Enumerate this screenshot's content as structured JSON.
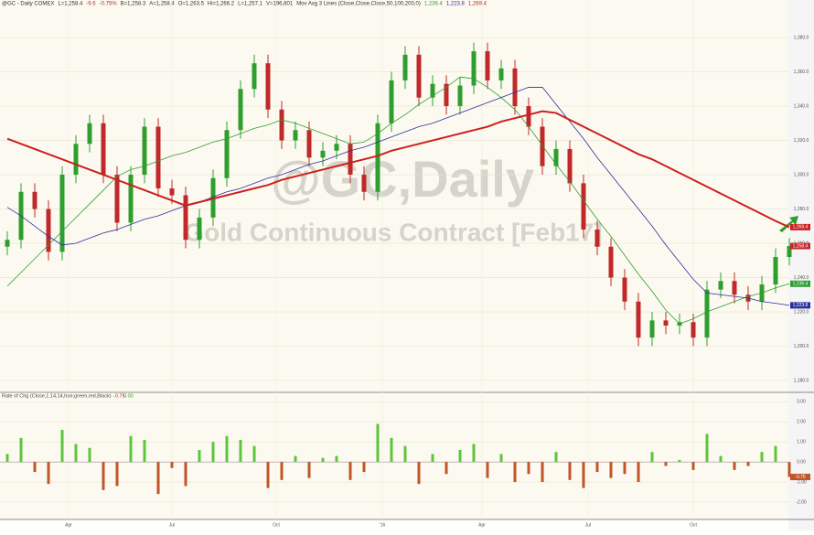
{
  "chart_data": {
    "type": "candlestick",
    "header": {
      "symbol": "@GC - Daily COMEX",
      "last": "L=1,258.4",
      "change": "-9.6",
      "change_pct": "-0.75%",
      "bid": "B=1,258.3",
      "ask": "A=1,258.4",
      "open": "O=1,263.5",
      "high": "Hi=1,266.2",
      "low": "L=1,257.1",
      "volume": "V=196,801",
      "study": "Mov Avg 3 Lines (Close,Close,Close,50,100,200,0)"
    },
    "watermark": "@GC,Daily",
    "subtitle": "Gold Continuous Contract [Feb17]",
    "x_labels": [
      "Apr",
      "Jul",
      "Oct",
      "'16",
      "Apr",
      "Jul",
      "Oct"
    ],
    "ylim": [
      1173.6,
      1401.9
    ],
    "yticks": [
      {
        "value": 1180,
        "label": "1,180.0"
      },
      {
        "value": 1200,
        "label": "1,200.0"
      },
      {
        "value": 1220,
        "label": "1,220.0"
      },
      {
        "value": 1240,
        "label": "1,240.0"
      },
      {
        "value": 1260,
        "label": "1,260.0"
      },
      {
        "value": 1280,
        "label": "1,280.0"
      },
      {
        "value": 1300,
        "label": "1,300.0"
      },
      {
        "value": 1320,
        "label": "1,320.0"
      },
      {
        "value": 1340,
        "label": "1,340.0"
      },
      {
        "value": 1360,
        "label": "1,360.0"
      },
      {
        "value": 1380,
        "label": "1,380.0"
      }
    ],
    "up_color": "#2e9e2e",
    "down_color": "#c0282a",
    "candles": {
      "open": [
        1258,
        1262,
        1290,
        1280,
        1255,
        1300,
        1318,
        1330,
        1300,
        1272,
        1300,
        1328,
        1292,
        1288,
        1262,
        1275,
        1298,
        1326,
        1350,
        1365,
        1338,
        1320,
        1326,
        1310,
        1314,
        1318,
        1300,
        1290,
        1330,
        1355,
        1370,
        1345,
        1353,
        1340,
        1352,
        1372,
        1355,
        1362,
        1340,
        1328,
        1305,
        1315,
        1295,
        1268,
        1258,
        1240,
        1226,
        1205,
        1215,
        1212,
        1214,
        1205,
        1233,
        1238,
        1230,
        1226,
        1236,
        1252
      ],
      "high": [
        1267,
        1295,
        1295,
        1285,
        1305,
        1323,
        1335,
        1335,
        1305,
        1305,
        1333,
        1333,
        1297,
        1293,
        1280,
        1303,
        1331,
        1355,
        1370,
        1370,
        1343,
        1331,
        1331,
        1319,
        1323,
        1323,
        1305,
        1335,
        1360,
        1375,
        1375,
        1358,
        1358,
        1357,
        1377,
        1377,
        1367,
        1367,
        1345,
        1333,
        1320,
        1320,
        1300,
        1273,
        1263,
        1245,
        1231,
        1220,
        1220,
        1219,
        1219,
        1238,
        1243,
        1243,
        1235,
        1241,
        1257,
        1263
      ],
      "low": [
        1253,
        1257,
        1275,
        1250,
        1250,
        1295,
        1313,
        1295,
        1267,
        1267,
        1295,
        1287,
        1283,
        1257,
        1257,
        1270,
        1293,
        1321,
        1345,
        1333,
        1315,
        1315,
        1305,
        1305,
        1309,
        1295,
        1285,
        1285,
        1325,
        1350,
        1340,
        1340,
        1335,
        1335,
        1347,
        1350,
        1350,
        1335,
        1323,
        1300,
        1300,
        1290,
        1263,
        1253,
        1235,
        1221,
        1200,
        1200,
        1207,
        1207,
        1200,
        1200,
        1228,
        1225,
        1221,
        1221,
        1231,
        1247
      ],
      "close": [
        1262,
        1290,
        1280,
        1255,
        1300,
        1318,
        1330,
        1300,
        1272,
        1300,
        1328,
        1292,
        1288,
        1262,
        1275,
        1298,
        1326,
        1350,
        1365,
        1338,
        1320,
        1326,
        1310,
        1314,
        1318,
        1300,
        1290,
        1330,
        1355,
        1370,
        1345,
        1353,
        1340,
        1352,
        1372,
        1355,
        1362,
        1340,
        1328,
        1305,
        1315,
        1295,
        1268,
        1258,
        1240,
        1226,
        1205,
        1215,
        1212,
        1214,
        1205,
        1233,
        1238,
        1230,
        1226,
        1236,
        1252,
        1258.4
      ],
      "last_label": "1,258.4"
    },
    "series": [
      {
        "color": "#2e9e2e",
        "last_label": "1,236.4",
        "values": [
          1235,
          1243,
          1251,
          1259,
          1267,
          1275,
          1283,
          1291,
          1299,
          1303,
          1305,
          1308,
          1311,
          1313,
          1316,
          1319,
          1321,
          1324,
          1327,
          1329,
          1332,
          1330,
          1327,
          1324,
          1321,
          1318,
          1319,
          1324,
          1330,
          1335,
          1341,
          1346,
          1351,
          1357,
          1356,
          1351,
          1345,
          1338,
          1328,
          1317,
          1306,
          1296,
          1285,
          1274,
          1264,
          1253,
          1242,
          1232,
          1221,
          1213,
          1216,
          1220,
          1223,
          1226,
          1229,
          1231,
          1234,
          1236.4
        ]
      },
      {
        "color": "#2b2f9e",
        "last_label": "1,223.8",
        "values": [
          1281,
          1276,
          1270,
          1264,
          1259,
          1260,
          1263,
          1266,
          1268,
          1271,
          1274,
          1276,
          1279,
          1282,
          1284,
          1287,
          1290,
          1292,
          1295,
          1298,
          1300,
          1303,
          1306,
          1308,
          1311,
          1314,
          1316,
          1319,
          1322,
          1325,
          1328,
          1330,
          1333,
          1336,
          1339,
          1342,
          1345,
          1348,
          1351,
          1351,
          1341,
          1331,
          1321,
          1310,
          1300,
          1290,
          1280,
          1270,
          1259,
          1249,
          1239,
          1231,
          1230,
          1229,
          1228,
          1226,
          1225,
          1223.8
        ]
      },
      {
        "color": "#cc1f1f",
        "last_label": "1,269.4",
        "values": [
          1321,
          1318,
          1315,
          1312,
          1309,
          1306,
          1303,
          1300,
          1297,
          1294,
          1291,
          1288,
          1285,
          1282,
          1284,
          1286,
          1288,
          1290,
          1292,
          1294,
          1297,
          1299,
          1301,
          1303,
          1305,
          1307,
          1309,
          1311,
          1314,
          1316,
          1318,
          1320,
          1322,
          1324,
          1326,
          1328,
          1331,
          1333,
          1335,
          1337,
          1336,
          1332,
          1328,
          1324,
          1320,
          1316,
          1312,
          1309,
          1305,
          1301,
          1297,
          1293,
          1289,
          1285,
          1281,
          1277,
          1273,
          1269.4
        ]
      }
    ],
    "roc": {
      "title": "Rate of Chg (Close,1,14,14,true,green,red,Black)",
      "last_label": "-0.75",
      "zero_label": "0.00",
      "ylim": [
        -2.87,
        3.43
      ],
      "yticks": [
        {
          "value": 3,
          "label": "3.00"
        },
        {
          "value": 2,
          "label": "2.00"
        },
        {
          "value": 1,
          "label": "1.00"
        },
        {
          "value": 0,
          "label": "0.00"
        },
        {
          "value": -1,
          "label": "-1.00"
        },
        {
          "value": -2,
          "label": "-2.00"
        }
      ],
      "up_color": "#5cc63a",
      "down_color": "#c0552a",
      "values": [
        0.4,
        1.2,
        -0.5,
        -1.1,
        1.6,
        0.9,
        0.7,
        -1.4,
        -1.2,
        1.3,
        1.1,
        -1.6,
        -0.3,
        -1.2,
        0.6,
        1.0,
        1.3,
        1.1,
        0.8,
        -1.3,
        -0.9,
        0.3,
        -0.8,
        0.2,
        0.3,
        -0.9,
        -0.5,
        1.9,
        1.2,
        0.8,
        -1.1,
        0.4,
        -0.6,
        0.6,
        0.9,
        -0.8,
        0.4,
        -1.0,
        -0.6,
        -1.0,
        0.5,
        -0.9,
        -1.3,
        -0.5,
        -0.8,
        -0.6,
        -1.0,
        0.5,
        -0.2,
        0.1,
        -0.4,
        1.4,
        0.3,
        -0.4,
        -0.2,
        0.5,
        0.8,
        -0.75
      ]
    }
  }
}
